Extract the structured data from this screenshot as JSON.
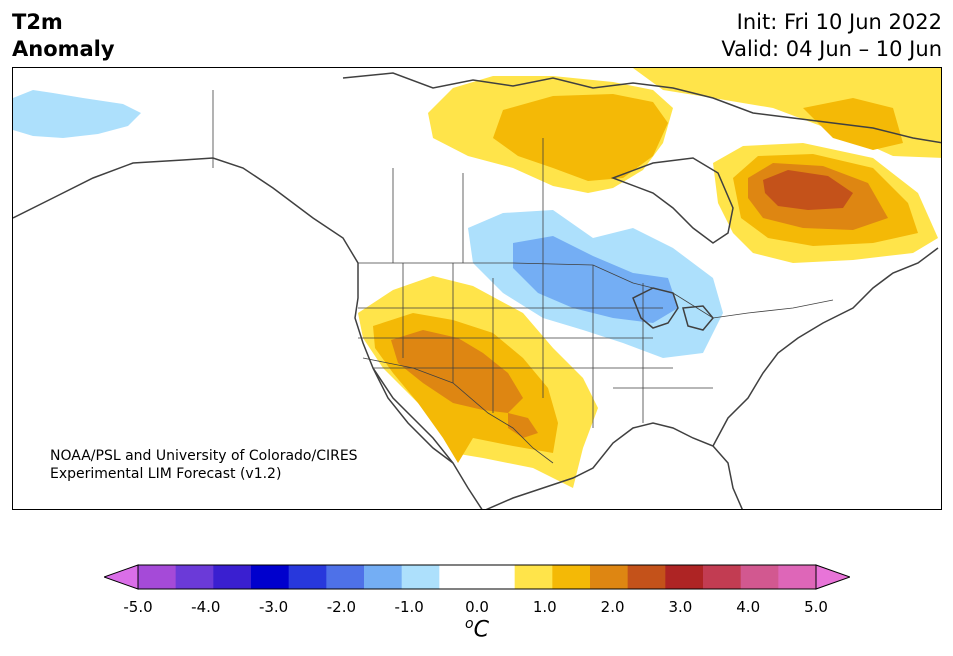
{
  "title": {
    "line1": "T2m",
    "line2": "Anomaly",
    "init": "Init: Fri 10 Jun 2022",
    "valid": "Valid: 04 Jun – 10 Jun"
  },
  "credit": {
    "line1": "NOAA/PSL and University of Colorado/CIRES",
    "line2": "Experimental LIM Forecast (v1.2)"
  },
  "colorbar": {
    "unit_main": "C",
    "unit_sup": "o",
    "ticks": [
      "-5.0",
      "-4.0",
      "-3.0",
      "-2.0",
      "-1.0",
      "0.0",
      "1.0",
      "2.0",
      "3.0",
      "4.0",
      "5.0"
    ],
    "bins": [
      {
        "color": "#a54ad8"
      },
      {
        "color": "#6b3ad8"
      },
      {
        "color": "#3a1fd0"
      },
      {
        "color": "#0000cd"
      },
      {
        "color": "#2838dc"
      },
      {
        "color": "#4e71e8"
      },
      {
        "color": "#74aef4"
      },
      {
        "color": "#ade0fc"
      },
      {
        "color": "#ffffff"
      },
      {
        "color": "#ffffff"
      },
      {
        "color": "#ffe44a"
      },
      {
        "color": "#f4b906"
      },
      {
        "color": "#de8612"
      },
      {
        "color": "#c4521a"
      },
      {
        "color": "#ae2424"
      },
      {
        "color": "#c23c52"
      },
      {
        "color": "#d25890"
      },
      {
        "color": "#de66b8"
      }
    ],
    "under_color": "#da6ee8",
    "over_color": "#e874d8"
  },
  "map_colors": {
    "land": "#ffffff",
    "coast": "#404040",
    "border": "#404040"
  }
}
